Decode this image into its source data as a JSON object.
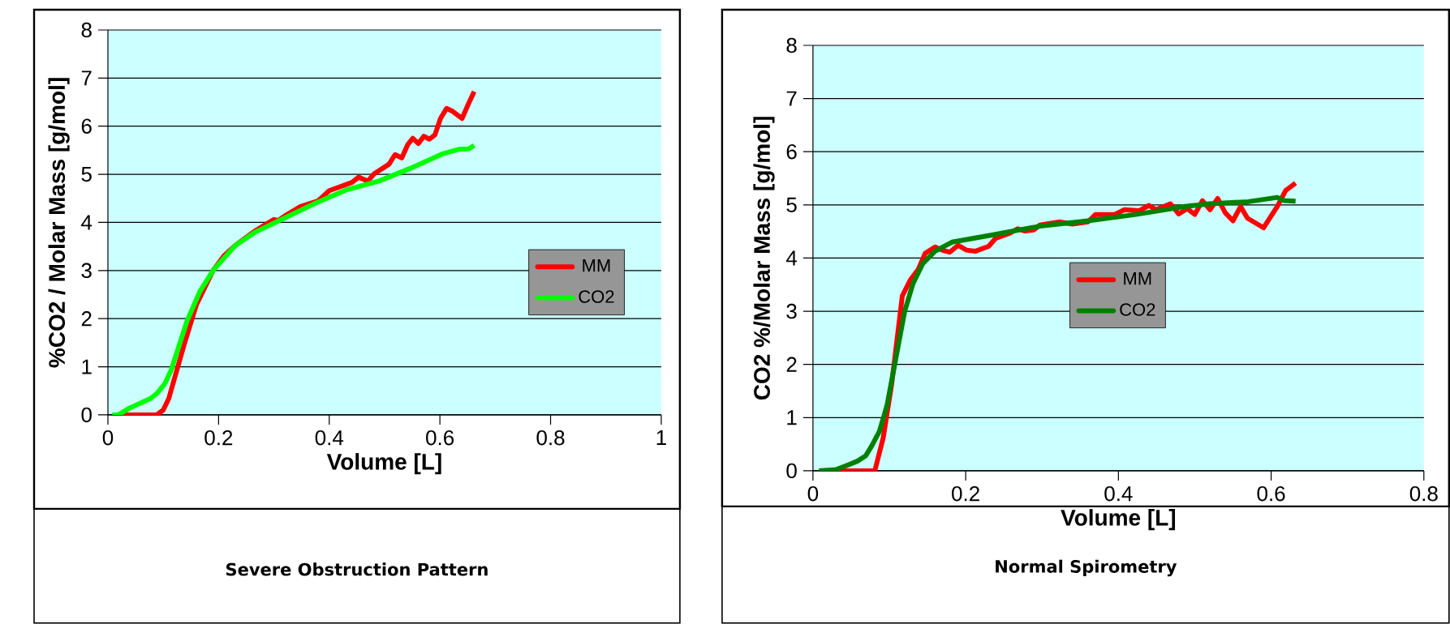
{
  "chart_data": [
    {
      "type": "line",
      "xlabel": "Volume [L]",
      "ylabel": "%CO2 / Molar Mass [g/mol]",
      "xlim": [
        0,
        1
      ],
      "ylim": [
        0,
        8
      ],
      "xticks": [
        0,
        0.2,
        0.4,
        0.6,
        0.8,
        1
      ],
      "yticks": [
        0,
        1,
        2,
        3,
        4,
        5,
        6,
        7,
        8
      ],
      "grid": "y",
      "legend": "right",
      "annotations": [
        "Severe Obstruction Pattern"
      ],
      "series": [
        {
          "name": "MM",
          "color": "#ff0000",
          "x": [
            0.02,
            0.088,
            0.1,
            0.11,
            0.138,
            0.16,
            0.19,
            0.21,
            0.23,
            0.268,
            0.3,
            0.308,
            0.323,
            0.348,
            0.38,
            0.4,
            0.441,
            0.453,
            0.47,
            0.481,
            0.508,
            0.519,
            0.531,
            0.542,
            0.551,
            0.561,
            0.571,
            0.581,
            0.591,
            0.601,
            0.612,
            0.623,
            0.64,
            0.651,
            0.662
          ],
          "values": [
            0,
            0,
            0.1,
            0.34,
            1.47,
            2.29,
            3.0,
            3.31,
            3.52,
            3.84,
            4.06,
            4.04,
            4.16,
            4.33,
            4.45,
            4.66,
            4.83,
            4.94,
            4.86,
            5.01,
            5.21,
            5.41,
            5.34,
            5.62,
            5.75,
            5.64,
            5.79,
            5.73,
            5.82,
            6.16,
            6.37,
            6.31,
            6.16,
            6.45,
            6.72
          ]
        },
        {
          "name": "CO2",
          "color": "#00ff00",
          "x": [
            0.008,
            0.019,
            0.039,
            0.077,
            0.088,
            0.103,
            0.114,
            0.143,
            0.166,
            0.19,
            0.23,
            0.265,
            0.317,
            0.375,
            0.432,
            0.49,
            0.548,
            0.606,
            0.635,
            0.652,
            0.662
          ],
          "values": [
            0,
            0,
            0.14,
            0.34,
            0.44,
            0.65,
            0.92,
            1.95,
            2.56,
            3.0,
            3.52,
            3.79,
            4.08,
            4.4,
            4.68,
            4.86,
            5.13,
            5.43,
            5.52,
            5.53,
            5.6
          ]
        }
      ]
    },
    {
      "type": "line",
      "xlabel": "Volume [L]",
      "ylabel": "CO2 %/Molar Mass [g/mol]",
      "xlim": [
        0,
        0.8
      ],
      "ylim": [
        0,
        8
      ],
      "xticks": [
        0,
        0.2,
        0.4,
        0.6,
        0.8
      ],
      "yticks": [
        0,
        1,
        2,
        3,
        4,
        5,
        6,
        7,
        8
      ],
      "grid": "y",
      "legend": "center",
      "annotations": [
        "Normal Spirometry"
      ],
      "series": [
        {
          "name": "MM",
          "color": "#ff0000",
          "x": [
            0.008,
            0.081,
            0.092,
            0.103,
            0.117,
            0.128,
            0.138,
            0.147,
            0.16,
            0.169,
            0.179,
            0.19,
            0.201,
            0.213,
            0.23,
            0.239,
            0.258,
            0.268,
            0.277,
            0.289,
            0.297,
            0.322,
            0.34,
            0.36,
            0.37,
            0.395,
            0.408,
            0.427,
            0.44,
            0.449,
            0.468,
            0.479,
            0.49,
            0.5,
            0.51,
            0.52,
            0.53,
            0.54,
            0.55,
            0.56,
            0.569,
            0.59,
            0.608,
            0.619,
            0.632
          ],
          "values": [
            0,
            0,
            0.62,
            1.62,
            3.29,
            3.6,
            3.79,
            4.09,
            4.21,
            4.15,
            4.11,
            4.24,
            4.15,
            4.13,
            4.22,
            4.37,
            4.47,
            4.55,
            4.51,
            4.53,
            4.62,
            4.68,
            4.64,
            4.68,
            4.82,
            4.82,
            4.91,
            4.89,
            4.99,
            4.91,
            5.02,
            4.83,
            4.93,
            4.82,
            5.08,
            4.91,
            5.12,
            4.85,
            4.7,
            4.97,
            4.75,
            4.57,
            4.97,
            5.27,
            5.41
          ]
        },
        {
          "name": "CO2",
          "color": "#008000",
          "x": [
            0.008,
            0.03,
            0.046,
            0.058,
            0.069,
            0.077,
            0.087,
            0.097,
            0.109,
            0.12,
            0.131,
            0.144,
            0.16,
            0.182,
            0.233,
            0.297,
            0.36,
            0.423,
            0.487,
            0.519,
            0.57,
            0.608,
            0.617,
            0.632
          ],
          "values": [
            0,
            0.02,
            0.11,
            0.18,
            0.28,
            0.47,
            0.74,
            1.23,
            2.15,
            2.99,
            3.52,
            3.9,
            4.13,
            4.3,
            4.43,
            4.6,
            4.7,
            4.82,
            4.97,
            5.02,
            5.06,
            5.14,
            5.08,
            5.07
          ]
        }
      ]
    }
  ]
}
